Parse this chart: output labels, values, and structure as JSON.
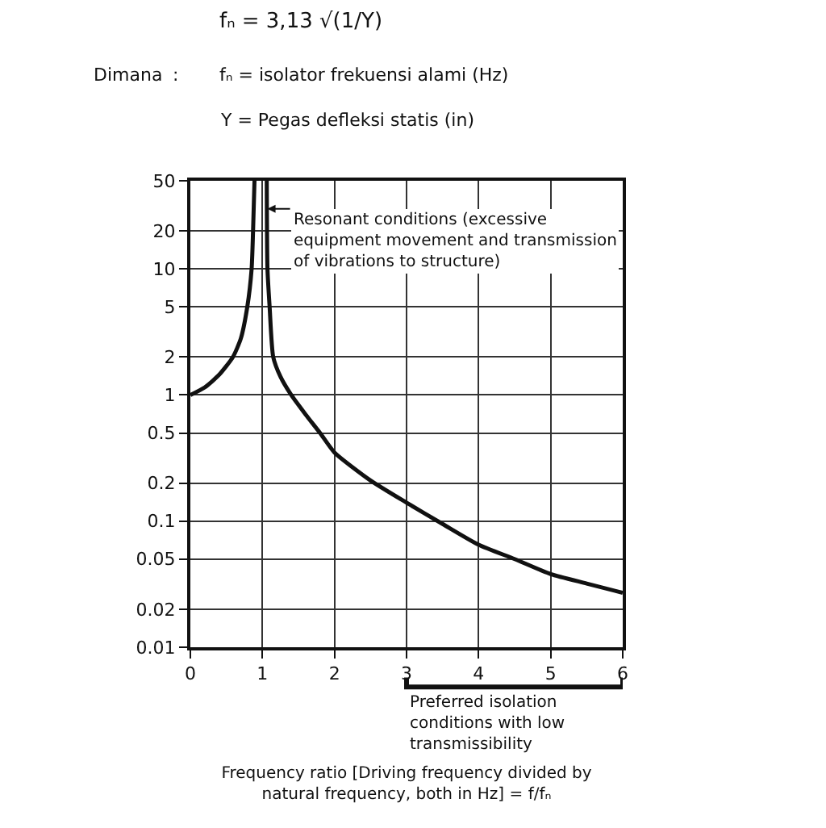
{
  "chart_data": {
    "type": "line",
    "xlabel": "Frequency ratio [Driving frequency divided by natural frequency, both in Hz] = f/fₙ",
    "annotations": [
      "fₙ = 3,13 √(1/Y)",
      "Dimana",
      ":",
      "fₙ = isolator frekuensi alami (Hz)",
      "Y = Pegas defleksi statis (in)",
      {
        "text": "Resonant conditions (excessive equipment movement and transmission of vibrations to structure)",
        "x": 1.07,
        "y": 30
      },
      "Preferred isolation conditions with low transmissibility"
    ],
    "series": [
      {
        "color": "#111111",
        "x": [
          0,
          0.2,
          0.4,
          0.59,
          0.7,
          0.79,
          0.85,
          0.87,
          0.89
        ],
        "values": [
          1,
          1.15,
          1.45,
          2,
          2.8,
          5,
          10,
          20,
          50
        ]
      },
      {
        "color": "#111111",
        "x": [
          1.06,
          1.07,
          1.1,
          1.15,
          1.25,
          1.4,
          1.6,
          1.8,
          2,
          2.5,
          3,
          3.5,
          4,
          4.5,
          5,
          5.5,
          6
        ],
        "values": [
          50,
          10,
          5,
          2,
          1.4,
          1,
          0.7,
          0.5,
          0.35,
          0.21,
          0.14,
          0.095,
          0.065,
          0.05,
          0.038,
          0.032,
          0.027
        ]
      }
    ],
    "xlim": [
      0,
      6
    ],
    "xticks": [
      0,
      1,
      2,
      3,
      4,
      5,
      6
    ],
    "ylim": [
      0.01,
      50
    ],
    "yticks": [
      0.01,
      0.02,
      0.05,
      0.1,
      0.2,
      0.5,
      1,
      2,
      5,
      10,
      20,
      50
    ],
    "log": "y",
    "grid": true,
    "marker": "none",
    "line_style": "solid"
  }
}
